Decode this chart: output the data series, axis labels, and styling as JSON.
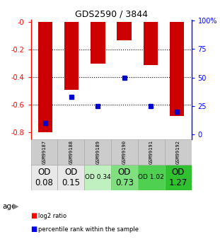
{
  "title": "GDS2590 / 3844",
  "samples": [
    "GSM99187",
    "GSM99188",
    "GSM99189",
    "GSM99190",
    "GSM99191",
    "GSM99192"
  ],
  "log2_ratio": [
    -0.8,
    -0.49,
    -0.3,
    -0.13,
    -0.31,
    -0.68
  ],
  "percentile_rank": [
    0.1,
    0.33,
    0.25,
    0.5,
    0.25,
    0.2
  ],
  "od_labels": [
    "OD\n0.08",
    "OD\n0.15",
    "OD 0.34",
    "OD\n0.73",
    "OD 1.02",
    "OD\n1.27"
  ],
  "od_colors": [
    "#e8e8e8",
    "#e8e8e8",
    "#c0f0c0",
    "#80e080",
    "#50d050",
    "#30c030"
  ],
  "od_fontsize_large": 8.5,
  "od_fontsize_small": 6.5,
  "od_large": [
    true,
    true,
    false,
    true,
    false,
    true
  ],
  "ylim_left": [
    -0.85,
    0.02
  ],
  "ylim_right": [
    -0.0425,
    1.01
  ],
  "yticks_left": [
    0.0,
    -0.2,
    -0.4,
    -0.6,
    -0.8
  ],
  "ytick_labels_left": [
    "-0",
    "-0.2",
    "-0.4",
    "-0.6",
    "-0.8"
  ],
  "yticks_right": [
    0.0,
    0.25,
    0.5,
    0.75,
    1.0
  ],
  "ytick_labels_right": [
    "0",
    "25",
    "50",
    "75",
    "100%"
  ],
  "bar_color": "#cc0000",
  "marker_color": "#0000cc",
  "bar_width": 0.55,
  "background_color": "#ffffff",
  "age_label": "age",
  "legend_red": "log2 ratio",
  "legend_blue": "percentile rank within the sample"
}
